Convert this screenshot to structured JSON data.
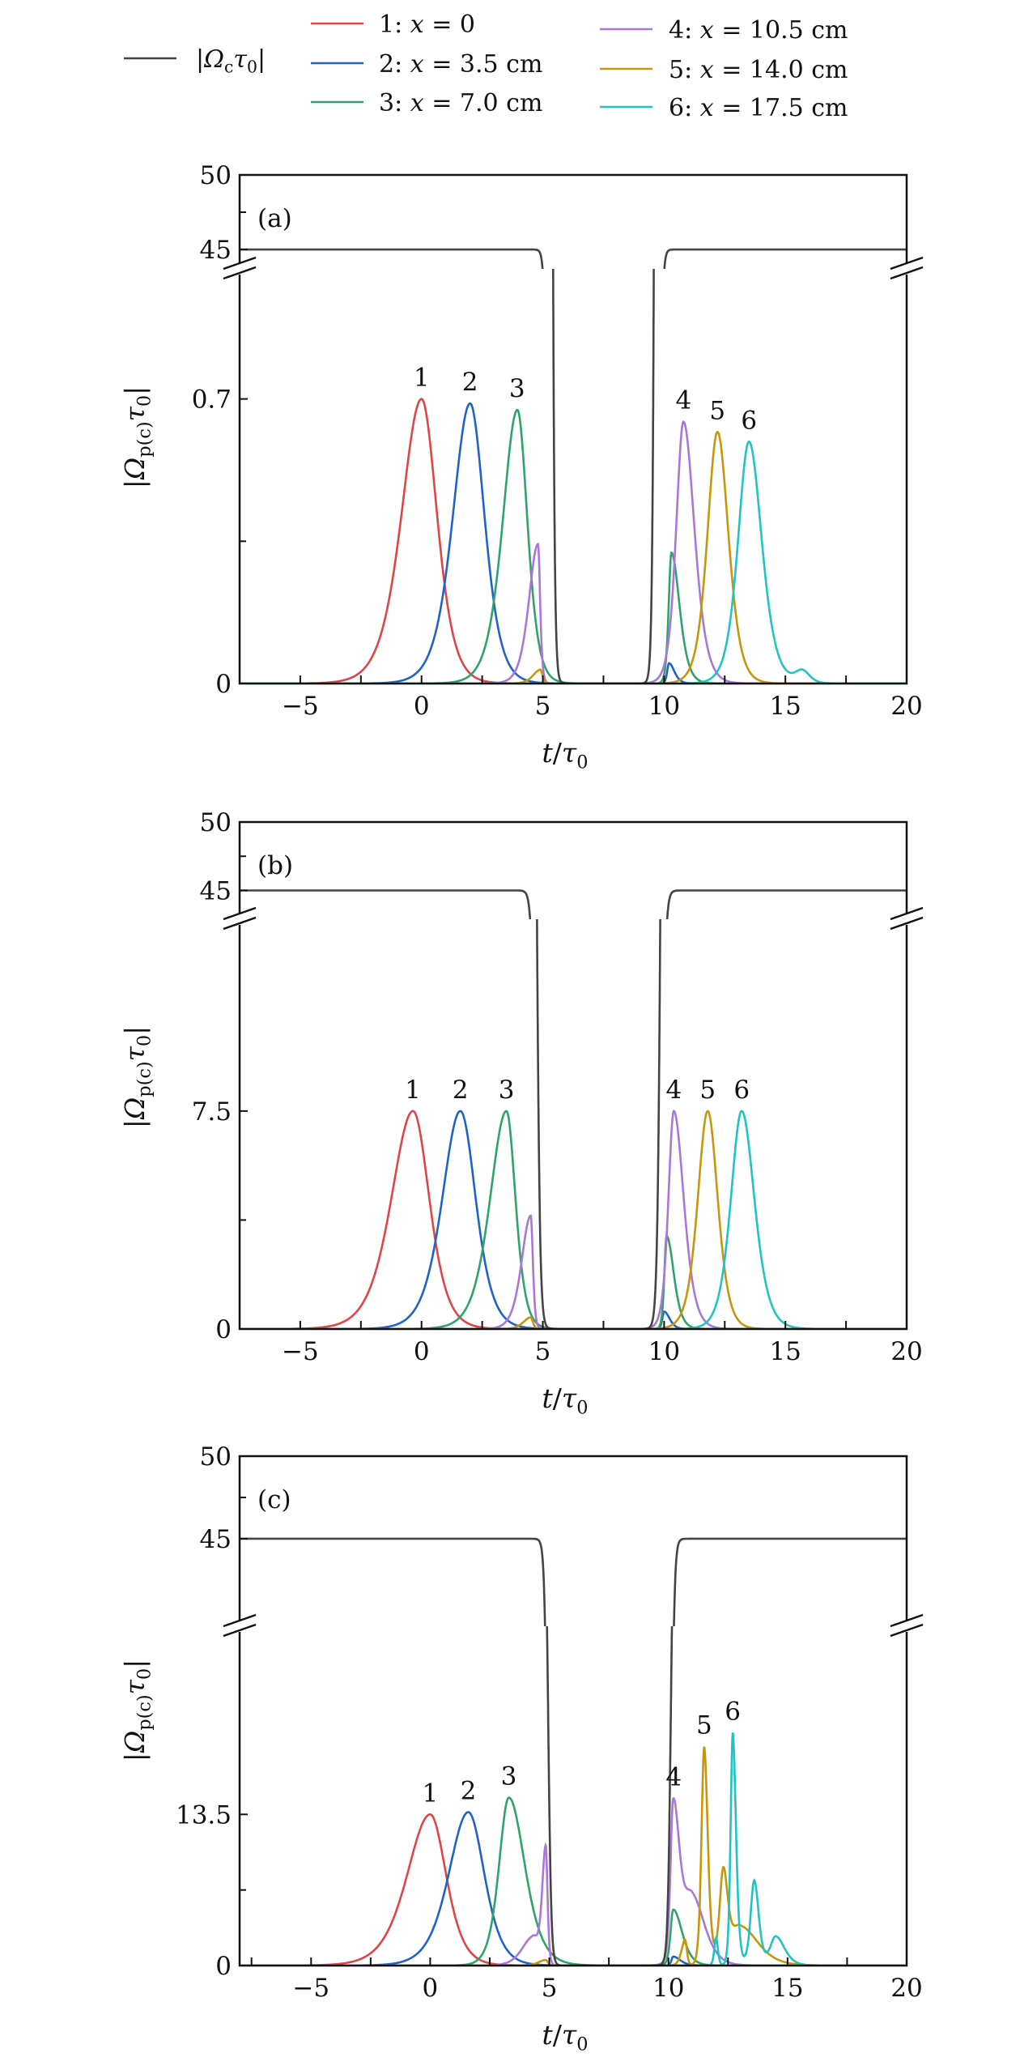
{
  "legend": {
    "control": {
      "label": "|Ωcτ0|",
      "color": "#444444"
    },
    "items": [
      {
        "prefix": "1:",
        "var": "x",
        "rest": "= 0",
        "color": "#e04545"
      },
      {
        "prefix": "2:",
        "var": "x",
        "rest": "= 3.5 cm",
        "color": "#1f63c9"
      },
      {
        "prefix": "3:",
        "var": "x",
        "rest": "= 7.0 cm",
        "color": "#2fa36b"
      },
      {
        "prefix": "4:",
        "var": "x",
        "rest": "= 10.5 cm",
        "color": "#a977d9"
      },
      {
        "prefix": "5:",
        "var": "x",
        "rest": "= 14.0 cm",
        "color": "#c8960c"
      },
      {
        "prefix": "6:",
        "var": "x",
        "rest": "= 17.5 cm",
        "color": "#20c4c4"
      }
    ]
  },
  "chart_data": [
    {
      "type": "line",
      "panel_label": "(a)",
      "xlabel": "t/τ0",
      "ylabel": "|Ωp(c)τ0|",
      "xlim": [
        -7.5,
        20
      ],
      "xticks": [
        "-5",
        "0",
        "5",
        "10",
        "15",
        "20"
      ],
      "xtick_values": [
        -5,
        0,
        5,
        10,
        15,
        20
      ],
      "upper_ylim": [
        43.7,
        50
      ],
      "upper_yticks": [
        "50",
        "45"
      ],
      "upper_ytick_values": [
        50,
        45
      ],
      "lower_ylim": [
        0,
        1.02
      ],
      "lower_yticks": [
        "0.7",
        "0"
      ],
      "lower_ytick_values": [
        0.7,
        0
      ],
      "lower_minor": 0.35,
      "control_field": {
        "value": 45,
        "fall_t": 5.2,
        "rise_t": 9.8,
        "edge": 0.12
      },
      "series": [
        {
          "label": "1",
          "components": [
            [
              0,
              0.7,
              1.1,
              0.85
            ]
          ]
        },
        {
          "label": "2",
          "components": [
            [
              2.0,
              0.689,
              0.95,
              0.8
            ],
            [
              10.2,
              0.05,
              0.1,
              0.3
            ]
          ]
        },
        {
          "label": "3",
          "components": [
            [
              3.95,
              0.673,
              0.8,
              0.55
            ],
            [
              10.3,
              0.322,
              0.15,
              0.45
            ]
          ]
        },
        {
          "label": "4",
          "components": [
            [
              4.8,
              0.343,
              0.5,
              0.12
            ],
            [
              10.8,
              0.644,
              0.4,
              0.6
            ]
          ]
        },
        {
          "label": "5",
          "components": [
            [
              4.9,
              0.034,
              0.4,
              0.12
            ],
            [
              12.2,
              0.619,
              0.55,
              0.6
            ]
          ]
        },
        {
          "label": "6",
          "components": [
            [
              13.5,
              0.595,
              0.6,
              0.7
            ],
            [
              15.7,
              0.03,
              0.4,
              0.4
            ]
          ]
        }
      ]
    },
    {
      "type": "line",
      "panel_label": "(b)",
      "xlabel": "t/τ0",
      "ylabel": "|Ωp(c)τ0|",
      "xlim": [
        -7.5,
        20
      ],
      "xticks": [
        "-5",
        "0",
        "5",
        "10",
        "15",
        "20"
      ],
      "xtick_values": [
        -5,
        0,
        5,
        10,
        15,
        20
      ],
      "upper_ylim": [
        42.9,
        50
      ],
      "upper_yticks": [
        "50",
        "45"
      ],
      "upper_ytick_values": [
        50,
        45
      ],
      "lower_ylim": [
        0,
        14.1
      ],
      "lower_yticks": [
        "7.5",
        "0"
      ],
      "lower_ytick_values": [
        7.5,
        0
      ],
      "lower_minor": 3.75,
      "control_field": {
        "value": 45,
        "fall_t": 4.7,
        "rise_t": 9.9,
        "edge": 0.15
      },
      "series": [
        {
          "label": "1",
          "components": [
            [
              -0.35,
              7.5,
              1.2,
              0.9
            ]
          ]
        },
        {
          "label": "2",
          "components": [
            [
              1.6,
              7.5,
              1.0,
              0.85
            ],
            [
              10.0,
              0.6,
              0.1,
              0.3
            ]
          ]
        },
        {
          "label": "3",
          "components": [
            [
              3.5,
              7.5,
              0.9,
              0.5
            ],
            [
              10.1,
              3.2,
              0.12,
              0.4
            ]
          ]
        },
        {
          "label": "4",
          "components": [
            [
              4.5,
              3.9,
              0.5,
              0.12
            ],
            [
              10.4,
              7.5,
              0.3,
              0.55
            ]
          ]
        },
        {
          "label": "5",
          "components": [
            [
              4.5,
              0.4,
              0.4,
              0.12
            ],
            [
              11.8,
              7.5,
              0.55,
              0.55
            ]
          ]
        },
        {
          "label": "6",
          "components": [
            [
              13.2,
              7.5,
              0.6,
              0.7
            ]
          ]
        }
      ]
    },
    {
      "type": "line",
      "panel_label": "(c)",
      "xlabel": "t/τ0",
      "ylabel": "|Ωp(c)τ0|",
      "xlim": [
        -8,
        20
      ],
      "xticks": [
        "-5",
        "0",
        "5",
        "10",
        "15",
        "20"
      ],
      "xtick_values": [
        -5,
        0,
        5,
        10,
        15,
        20
      ],
      "upper_ylim": [
        39.7,
        50
      ],
      "upper_yticks": [
        "50",
        "45"
      ],
      "upper_ytick_values": [
        50,
        45
      ],
      "lower_ylim": [
        0,
        30.3
      ],
      "lower_yticks": [
        "13.5",
        "0"
      ],
      "lower_ytick_values": [
        13.5,
        0
      ],
      "lower_minor": 6.75,
      "control_field": {
        "value": 45,
        "fall_t": 4.95,
        "rise_t": 10.1,
        "edge": 0.13
      },
      "series": [
        {
          "label": "1",
          "components": [
            [
              0,
              13.5,
              1.3,
              0.9
            ]
          ]
        },
        {
          "label": "2",
          "components": [
            [
              1.6,
              13.7,
              1.1,
              0.9
            ],
            [
              10.2,
              0.8,
              0.1,
              0.4
            ]
          ]
        },
        {
          "label": "3",
          "components": [
            [
              3.3,
              15.0,
              0.55,
              0.9
            ],
            [
              10.2,
              5.0,
              0.15,
              0.5
            ]
          ]
        },
        {
          "label": "4",
          "components": [
            [
              4.85,
              10.5,
              0.2,
              0.1
            ],
            [
              4.3,
              2.5,
              0.6,
              0.3
            ],
            [
              10.2,
              14.0,
              0.15,
              0.35
            ],
            [
              11.0,
              6,
              0.5,
              0.7
            ]
          ]
        },
        {
          "label": "5",
          "components": [
            [
              4.85,
              0.5,
              0.4,
              0.12
            ],
            [
              10.7,
              2.3,
              0.2,
              0.1
            ],
            [
              11.5,
              19.5,
              0.15,
              0.2
            ],
            [
              12.3,
              8,
              0.2,
              0.25
            ],
            [
              13,
              3.5,
              0.5,
              1.0
            ]
          ]
        },
        {
          "label": "6",
          "components": [
            [
              12.0,
              2.5,
              0.1,
              0.1
            ],
            [
              12.7,
              20.8,
              0.12,
              0.18
            ],
            [
              13.6,
              7.6,
              0.2,
              0.25
            ],
            [
              14.5,
              2.6,
              0.3,
              0.5
            ]
          ]
        }
      ]
    }
  ]
}
